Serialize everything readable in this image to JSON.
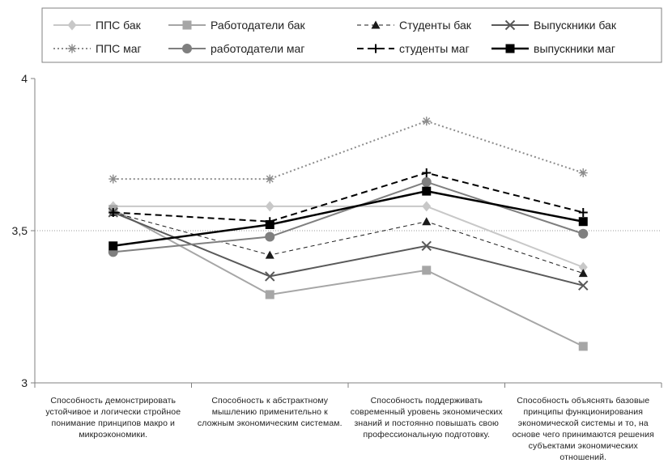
{
  "chart_data": {
    "type": "line",
    "title": "",
    "xlabel": "",
    "ylabel": "",
    "ylim": [
      3,
      4
    ],
    "yticks": [
      "4",
      "3,5",
      "3"
    ],
    "gridlines": "y=3.5 only (dotted)",
    "legend_position": "top",
    "categories": [
      "Способность демонстрировать устойчивое и логически стройное понимание принципов макро и микроэкономики.",
      "Способность к абстрактному мышлению применительно к сложным экономическим системам.",
      "Способность поддерживать современный уровень экономических знаний и постоянно повышать свою профессиональную подготовку.",
      "Способность объяснять базовые принципы функционирования экономической системы и то, на основе чего принимаются решения субъектами экономических отношений."
    ],
    "series": [
      {
        "name": "ППС бак",
        "values": [
          3.58,
          3.58,
          3.58,
          3.38
        ],
        "color": "#c8c8c8",
        "dash": "solid",
        "width": 2,
        "marker": "diamond"
      },
      {
        "name": "Работодатели бак",
        "values": [
          3.57,
          3.29,
          3.37,
          3.12
        ],
        "color": "#a6a6a6",
        "dash": "solid",
        "width": 2,
        "marker": "square"
      },
      {
        "name": "Студенты бак",
        "values": [
          3.56,
          3.42,
          3.53,
          3.36
        ],
        "color": "#1a1a1a",
        "dash": "dashed-thin",
        "width": 1,
        "marker": "triangle"
      },
      {
        "name": "Выпускники бак",
        "values": [
          3.56,
          3.35,
          3.45,
          3.32
        ],
        "color": "#595959",
        "dash": "solid",
        "width": 2,
        "marker": "x"
      },
      {
        "name": "ППС маг",
        "values": [
          3.67,
          3.67,
          3.86,
          3.69
        ],
        "color": "#8c8c8c",
        "dash": "dotted",
        "width": 2,
        "marker": "star"
      },
      {
        "name": "работодатели маг",
        "values": [
          3.43,
          3.48,
          3.66,
          3.49
        ],
        "color": "#7f7f7f",
        "dash": "solid",
        "width": 2,
        "marker": "circle"
      },
      {
        "name": "студенты маг",
        "values": [
          3.56,
          3.53,
          3.69,
          3.56
        ],
        "color": "#000000",
        "dash": "dashed",
        "width": 2,
        "marker": "plus"
      },
      {
        "name": "выпускники маг",
        "values": [
          3.45,
          3.52,
          3.63,
          3.53
        ],
        "color": "#000000",
        "dash": "solid",
        "width": 2.5,
        "marker": "square"
      }
    ]
  }
}
